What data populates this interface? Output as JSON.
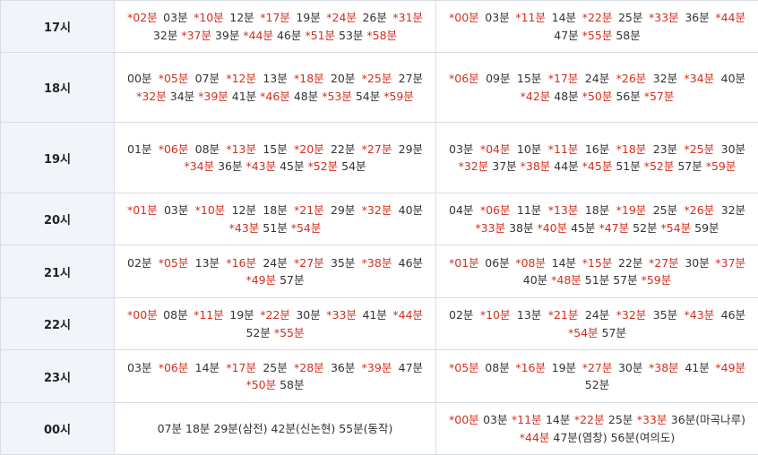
{
  "rows": [
    {
      "hour": "17시",
      "col1": [
        {
          "t": "*02분",
          "r": true
        },
        {
          "t": "03분",
          "r": false
        },
        {
          "t": "*10분",
          "r": true
        },
        {
          "t": "12분",
          "r": false
        },
        {
          "t": "*17분",
          "r": true
        },
        {
          "t": "19분",
          "r": false
        },
        {
          "t": "*24분",
          "r": true
        },
        {
          "t": "26분",
          "r": false
        },
        {
          "t": "*31분",
          "r": true
        },
        {
          "t": "32분",
          "r": false
        },
        {
          "t": "*37분",
          "r": true
        },
        {
          "t": "39분",
          "r": false
        },
        {
          "t": "*44분",
          "r": true
        },
        {
          "t": "46분",
          "r": false
        },
        {
          "t": "*51분",
          "r": true
        },
        {
          "t": "53분",
          "r": false
        },
        {
          "t": "*58분",
          "r": true
        }
      ],
      "col2": [
        {
          "t": "*00분",
          "r": true
        },
        {
          "t": "03분",
          "r": false
        },
        {
          "t": "*11분",
          "r": true
        },
        {
          "t": "14분",
          "r": false
        },
        {
          "t": "*22분",
          "r": true
        },
        {
          "t": "25분",
          "r": false
        },
        {
          "t": "*33분",
          "r": true
        },
        {
          "t": "36분",
          "r": false
        },
        {
          "t": "*44분",
          "r": true
        },
        {
          "t": "47분",
          "r": false
        },
        {
          "t": "*55분",
          "r": true
        },
        {
          "t": "58분",
          "r": false
        }
      ]
    },
    {
      "hour": "18시",
      "col1": [
        {
          "t": "00분",
          "r": false
        },
        {
          "t": "*05분",
          "r": true
        },
        {
          "t": "07분",
          "r": false
        },
        {
          "t": "*12분",
          "r": true
        },
        {
          "t": "13분",
          "r": false
        },
        {
          "t": "*18분",
          "r": true
        },
        {
          "t": "20분",
          "r": false
        },
        {
          "t": "*25분",
          "r": true
        },
        {
          "t": "27분",
          "r": false
        },
        {
          "t": "*32분",
          "r": true
        },
        {
          "t": "34분",
          "r": false
        },
        {
          "t": "*39분",
          "r": true
        },
        {
          "t": "41분",
          "r": false
        },
        {
          "t": "*46분",
          "r": true
        },
        {
          "t": "48분",
          "r": false
        },
        {
          "t": "*53분",
          "r": true
        },
        {
          "t": "54분",
          "r": false
        },
        {
          "t": "*59분",
          "r": true
        }
      ],
      "col2": [
        {
          "t": "*06분",
          "r": true
        },
        {
          "t": "09분",
          "r": false
        },
        {
          "t": "15분",
          "r": false
        },
        {
          "t": "*17분",
          "r": true
        },
        {
          "t": "24분",
          "r": false
        },
        {
          "t": "*26분",
          "r": true
        },
        {
          "t": "32분",
          "r": false
        },
        {
          "t": "*34분",
          "r": true
        },
        {
          "t": "40분",
          "r": false
        },
        {
          "t": "*42분",
          "r": true
        },
        {
          "t": "48분",
          "r": false
        },
        {
          "t": "*50분",
          "r": true
        },
        {
          "t": "56분",
          "r": false
        },
        {
          "t": "*57분",
          "r": true
        }
      ]
    },
    {
      "hour": "19시",
      "col1": [
        {
          "t": "01분",
          "r": false
        },
        {
          "t": "*06분",
          "r": true
        },
        {
          "t": "08분",
          "r": false
        },
        {
          "t": "*13분",
          "r": true
        },
        {
          "t": "15분",
          "r": false
        },
        {
          "t": "*20분",
          "r": true
        },
        {
          "t": "22분",
          "r": false
        },
        {
          "t": "*27분",
          "r": true
        },
        {
          "t": "29분",
          "r": false
        },
        {
          "t": "*34분",
          "r": true
        },
        {
          "t": "36분",
          "r": false
        },
        {
          "t": "*43분",
          "r": true
        },
        {
          "t": "45분",
          "r": false
        },
        {
          "t": "*52분",
          "r": true
        },
        {
          "t": "54분",
          "r": false
        }
      ],
      "col2": [
        {
          "t": "03분",
          "r": false
        },
        {
          "t": "*04분",
          "r": true
        },
        {
          "t": "10분",
          "r": false
        },
        {
          "t": "*11분",
          "r": true
        },
        {
          "t": "16분",
          "r": false
        },
        {
          "t": "*18분",
          "r": true
        },
        {
          "t": "23분",
          "r": false
        },
        {
          "t": "*25분",
          "r": true
        },
        {
          "t": "30분",
          "r": false
        },
        {
          "t": "*32분",
          "r": true
        },
        {
          "t": "37분",
          "r": false
        },
        {
          "t": "*38분",
          "r": true
        },
        {
          "t": "44분",
          "r": false
        },
        {
          "t": "*45분",
          "r": true
        },
        {
          "t": "51분",
          "r": false
        },
        {
          "t": "*52분",
          "r": true
        },
        {
          "t": "57분",
          "r": false
        },
        {
          "t": "*59분",
          "r": true
        }
      ]
    },
    {
      "hour": "20시",
      "col1": [
        {
          "t": "*01분",
          "r": true
        },
        {
          "t": "03분",
          "r": false
        },
        {
          "t": "*10분",
          "r": true
        },
        {
          "t": "12분",
          "r": false
        },
        {
          "t": "18분",
          "r": false
        },
        {
          "t": "*21분",
          "r": true
        },
        {
          "t": "29분",
          "r": false
        },
        {
          "t": "*32분",
          "r": true
        },
        {
          "t": "40분",
          "r": false
        },
        {
          "t": "*43분",
          "r": true
        },
        {
          "t": "51분",
          "r": false
        },
        {
          "t": "*54분",
          "r": true
        }
      ],
      "col2": [
        {
          "t": "04분",
          "r": false
        },
        {
          "t": "*06분",
          "r": true
        },
        {
          "t": "11분",
          "r": false
        },
        {
          "t": "*13분",
          "r": true
        },
        {
          "t": "18분",
          "r": false
        },
        {
          "t": "*19분",
          "r": true
        },
        {
          "t": "25분",
          "r": false
        },
        {
          "t": "*26분",
          "r": true
        },
        {
          "t": "32분",
          "r": false
        },
        {
          "t": "*33분",
          "r": true
        },
        {
          "t": "38분",
          "r": false
        },
        {
          "t": "*40분",
          "r": true
        },
        {
          "t": "45분",
          "r": false
        },
        {
          "t": "*47분",
          "r": true
        },
        {
          "t": "52분",
          "r": false
        },
        {
          "t": "*54분",
          "r": true
        },
        {
          "t": "59분",
          "r": false
        }
      ]
    },
    {
      "hour": "21시",
      "col1": [
        {
          "t": "02분",
          "r": false
        },
        {
          "t": "*05분",
          "r": true
        },
        {
          "t": "13분",
          "r": false
        },
        {
          "t": "*16분",
          "r": true
        },
        {
          "t": "24분",
          "r": false
        },
        {
          "t": "*27분",
          "r": true
        },
        {
          "t": "35분",
          "r": false
        },
        {
          "t": "*38분",
          "r": true
        },
        {
          "t": "46분",
          "r": false
        },
        {
          "t": "*49분",
          "r": true
        },
        {
          "t": "57분",
          "r": false
        }
      ],
      "col2": [
        {
          "t": "*01분",
          "r": true
        },
        {
          "t": "06분",
          "r": false
        },
        {
          "t": "*08분",
          "r": true
        },
        {
          "t": "14분",
          "r": false
        },
        {
          "t": "*15분",
          "r": true
        },
        {
          "t": "22분",
          "r": false
        },
        {
          "t": "*27분",
          "r": true
        },
        {
          "t": "30분",
          "r": false
        },
        {
          "t": "*37분",
          "r": true
        },
        {
          "t": "40분",
          "r": false
        },
        {
          "t": "*48분",
          "r": true
        },
        {
          "t": "51분",
          "r": false
        },
        {
          "t": "57분",
          "r": false
        },
        {
          "t": "*59분",
          "r": true
        }
      ]
    },
    {
      "hour": "22시",
      "col1": [
        {
          "t": "*00분",
          "r": true
        },
        {
          "t": "08분",
          "r": false
        },
        {
          "t": "*11분",
          "r": true
        },
        {
          "t": "19분",
          "r": false
        },
        {
          "t": "*22분",
          "r": true
        },
        {
          "t": "30분",
          "r": false
        },
        {
          "t": "*33분",
          "r": true
        },
        {
          "t": "41분",
          "r": false
        },
        {
          "t": "*44분",
          "r": true
        },
        {
          "t": "52분",
          "r": false
        },
        {
          "t": "*55분",
          "r": true
        }
      ],
      "col2": [
        {
          "t": "02분",
          "r": false
        },
        {
          "t": "*10분",
          "r": true
        },
        {
          "t": "13분",
          "r": false
        },
        {
          "t": "*21분",
          "r": true
        },
        {
          "t": "24분",
          "r": false
        },
        {
          "t": "*32분",
          "r": true
        },
        {
          "t": "35분",
          "r": false
        },
        {
          "t": "*43분",
          "r": true
        },
        {
          "t": "46분",
          "r": false
        },
        {
          "t": "*54분",
          "r": true
        },
        {
          "t": "57분",
          "r": false
        }
      ]
    },
    {
      "hour": "23시",
      "col1": [
        {
          "t": "03분",
          "r": false
        },
        {
          "t": "*06분",
          "r": true
        },
        {
          "t": "14분",
          "r": false
        },
        {
          "t": "*17분",
          "r": true
        },
        {
          "t": "25분",
          "r": false
        },
        {
          "t": "*28분",
          "r": true
        },
        {
          "t": "36분",
          "r": false
        },
        {
          "t": "*39분",
          "r": true
        },
        {
          "t": "47분",
          "r": false
        },
        {
          "t": "*50분",
          "r": true
        },
        {
          "t": "58분",
          "r": false
        }
      ],
      "col2": [
        {
          "t": "*05분",
          "r": true
        },
        {
          "t": "08분",
          "r": false
        },
        {
          "t": "*16분",
          "r": true
        },
        {
          "t": "19분",
          "r": false
        },
        {
          "t": "*27분",
          "r": true
        },
        {
          "t": "30분",
          "r": false
        },
        {
          "t": "*38분",
          "r": true
        },
        {
          "t": "41분",
          "r": false
        },
        {
          "t": "*49분",
          "r": true
        },
        {
          "t": "52분",
          "r": false
        }
      ]
    },
    {
      "hour": "00시",
      "col1": [
        {
          "t": "07분",
          "r": false
        },
        {
          "t": "18분",
          "r": false
        },
        {
          "t": "29분(삼전)",
          "r": false
        },
        {
          "t": "42분(신논현)",
          "r": false
        },
        {
          "t": "55분(동작)",
          "r": false
        }
      ],
      "col2": [
        {
          "t": "*00분",
          "r": true
        },
        {
          "t": "03분",
          "r": false
        },
        {
          "t": "*11분",
          "r": true
        },
        {
          "t": "14분",
          "r": false
        },
        {
          "t": "*22분",
          "r": true
        },
        {
          "t": "25분",
          "r": false
        },
        {
          "t": "*33분",
          "r": true
        },
        {
          "t": "36분(마곡나루)",
          "r": false
        },
        {
          "t": "*44분",
          "r": true
        },
        {
          "t": "47분(염창)",
          "r": false
        },
        {
          "t": "56분(여의도)",
          "r": false
        }
      ]
    }
  ]
}
